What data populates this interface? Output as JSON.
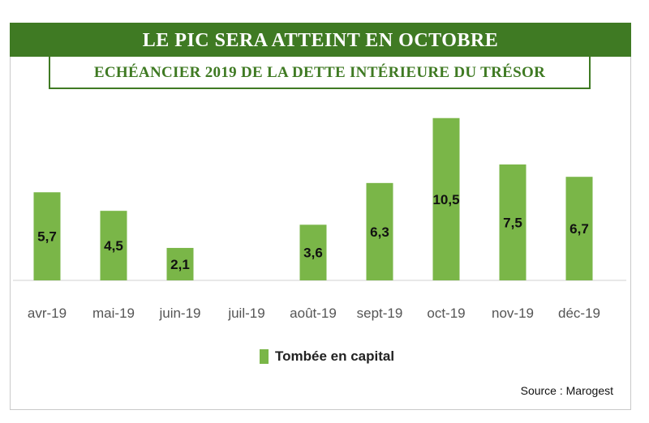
{
  "header": {
    "title": "LE PIC SERA ATTEINT EN OCTOBRE",
    "subtitle": "ECHÉANCIER 2019 DE LA DETTE INTÉRIEURE DU TRÉSOR"
  },
  "source": "Source : Marogest",
  "colors": {
    "banner": "#3f7a23",
    "bar": "#7ab648"
  },
  "chart_data": {
    "type": "bar",
    "categories": [
      "avr-19",
      "mai-19",
      "juin-19",
      "juil-19",
      "août-19",
      "sept-19",
      "oct-19",
      "nov-19",
      "déc-19"
    ],
    "series": [
      {
        "name": "Tombée en capital",
        "values": [
          5.7,
          4.5,
          2.1,
          null,
          3.6,
          6.3,
          10.5,
          7.5,
          6.7
        ],
        "labels": [
          "5,7",
          "4,5",
          "2,1",
          "",
          "3,6",
          "6,3",
          "10,5",
          "7,5",
          "6,7"
        ]
      }
    ],
    "legend_position": "bottom-center",
    "grid": false
  }
}
